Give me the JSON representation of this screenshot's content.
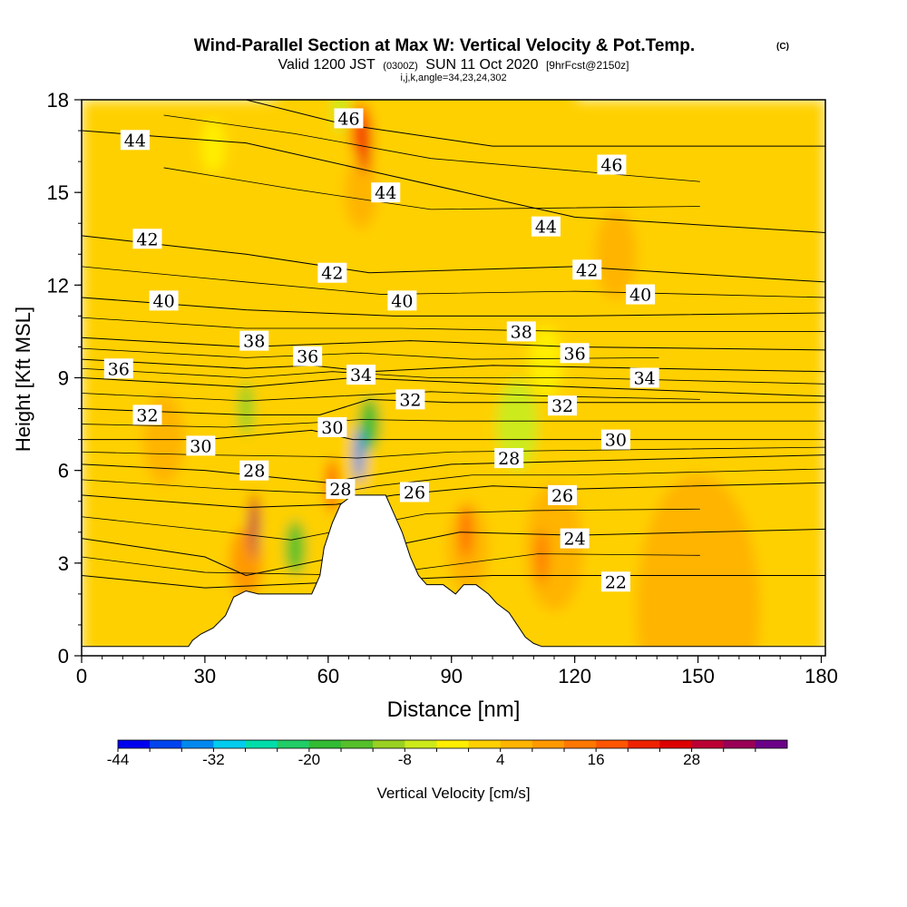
{
  "header": {
    "title": "Wind-Parallel Section at Max W: Vertical Velocity & Pot.Temp.",
    "copyright": "(C)",
    "valid_main": "Valid 1200 JST",
    "valid_utc": "(0300Z)",
    "valid_date": "SUN 11 Oct 2020",
    "forecast": "[9hrFcst@2150z]",
    "indices": "i,j,k,angle=34,23,24,302"
  },
  "chart_data": {
    "type": "heatmap",
    "xlabel": "Distance [nm]",
    "ylabel": "Height [Kft MSL]",
    "xlim": [
      0,
      181
    ],
    "ylim": [
      0,
      18
    ],
    "x_ticks": [
      "0",
      "30",
      "60",
      "90",
      "120",
      "150",
      "180"
    ],
    "y_ticks": [
      "0",
      "3",
      "6",
      "9",
      "12",
      "15",
      "18"
    ],
    "colorbar": {
      "label": "Vertical Velocity [cm/s]",
      "tick_labels": [
        "-44",
        "-32",
        "-20",
        "-8",
        "4",
        "16",
        "28"
      ],
      "min": -44,
      "step": 4,
      "colors": [
        "#0000ee",
        "#0044ee",
        "#0088ee",
        "#00ccee",
        "#00ddaa",
        "#22cc66",
        "#33bb33",
        "#55c02a",
        "#99d022",
        "#ccea1a",
        "#ffee00",
        "#ffd000",
        "#ffb400",
        "#ff9900",
        "#ff7700",
        "#ff5500",
        "#ee2200",
        "#dd0000",
        "#bb0033",
        "#990055",
        "#6a0088"
      ]
    },
    "terrain": [
      [
        0,
        0.3
      ],
      [
        26,
        0.3
      ],
      [
        27,
        0.5
      ],
      [
        29,
        0.7
      ],
      [
        32,
        0.9
      ],
      [
        35,
        1.3
      ],
      [
        37,
        1.9
      ],
      [
        40,
        2.1
      ],
      [
        43,
        2.0
      ],
      [
        48,
        2.0
      ],
      [
        56,
        2.0
      ],
      [
        58,
        2.6
      ],
      [
        59,
        3.5
      ],
      [
        61,
        4.3
      ],
      [
        63,
        4.9
      ],
      [
        66,
        5.2
      ],
      [
        70,
        5.2
      ],
      [
        74,
        5.2
      ],
      [
        76,
        4.6
      ],
      [
        78,
        4.0
      ],
      [
        80,
        3.2
      ],
      [
        82,
        2.6
      ],
      [
        84,
        2.3
      ],
      [
        88,
        2.3
      ],
      [
        91,
        2.0
      ],
      [
        93,
        2.3
      ],
      [
        96,
        2.3
      ],
      [
        99,
        2.0
      ],
      [
        101,
        1.7
      ],
      [
        104,
        1.4
      ],
      [
        106,
        1.0
      ],
      [
        108,
        0.6
      ],
      [
        110,
        0.4
      ],
      [
        112,
        0.3
      ],
      [
        181,
        0.3
      ]
    ],
    "theta_contours": [
      {
        "label": "44",
        "points": [
          [
            0,
            17.0
          ],
          [
            40,
            16.6
          ],
          [
            70,
            15.7
          ],
          [
            120,
            14.2
          ],
          [
            181,
            13.7
          ]
        ]
      },
      {
        "label": "46",
        "points": [
          [
            40,
            18.0
          ],
          [
            64,
            17.2
          ],
          [
            100,
            16.5
          ],
          [
            181,
            16.5
          ]
        ]
      },
      {
        "label": "42",
        "points": [
          [
            0,
            13.6
          ],
          [
            40,
            13.0
          ],
          [
            70,
            12.4
          ],
          [
            120,
            12.6
          ],
          [
            181,
            12.1
          ]
        ]
      },
      {
        "label": "40",
        "points": [
          [
            0,
            11.6
          ],
          [
            40,
            11.2
          ],
          [
            76,
            11.0
          ],
          [
            120,
            11.0
          ],
          [
            181,
            11.1
          ]
        ]
      },
      {
        "label": "38",
        "points": [
          [
            0,
            10.3
          ],
          [
            40,
            10.0
          ],
          [
            80,
            10.2
          ],
          [
            120,
            10.0
          ],
          [
            181,
            9.9
          ]
        ]
      },
      {
        "label": "36",
        "points": [
          [
            0,
            9.6
          ],
          [
            40,
            9.3
          ],
          [
            56,
            9.4
          ],
          [
            70,
            9.2
          ],
          [
            100,
            9.4
          ],
          [
            181,
            9.2
          ]
        ]
      },
      {
        "label": "34",
        "points": [
          [
            0,
            9.0
          ],
          [
            40,
            8.7
          ],
          [
            66,
            9.0
          ],
          [
            100,
            8.8
          ],
          [
            140,
            8.6
          ],
          [
            181,
            8.4
          ]
        ]
      },
      {
        "label": "32",
        "points": [
          [
            0,
            8.0
          ],
          [
            40,
            7.8
          ],
          [
            58,
            7.8
          ],
          [
            70,
            8.3
          ],
          [
            90,
            8.2
          ],
          [
            120,
            8.2
          ],
          [
            181,
            8.2
          ]
        ]
      },
      {
        "label": "30",
        "points": [
          [
            0,
            7.0
          ],
          [
            30,
            7.0
          ],
          [
            56,
            7.3
          ],
          [
            66,
            7.0
          ],
          [
            90,
            7.0
          ],
          [
            120,
            7.0
          ],
          [
            181,
            7.0
          ]
        ]
      },
      {
        "label": "28",
        "points": [
          [
            0,
            6.2
          ],
          [
            30,
            6.0
          ],
          [
            60,
            5.6
          ],
          [
            68,
            5.8
          ],
          [
            90,
            6.2
          ],
          [
            120,
            6.3
          ],
          [
            181,
            6.5
          ]
        ]
      },
      {
        "label": "26",
        "points": [
          [
            0,
            5.2
          ],
          [
            40,
            4.8
          ],
          [
            62,
            4.9
          ],
          [
            76,
            5.2
          ],
          [
            100,
            5.5
          ],
          [
            120,
            5.4
          ],
          [
            181,
            5.6
          ]
        ]
      },
      {
        "label": "24",
        "points": [
          [
            0,
            3.8
          ],
          [
            30,
            3.2
          ],
          [
            40,
            2.6
          ],
          [
            92,
            4.0
          ],
          [
            120,
            3.9
          ],
          [
            181,
            4.1
          ]
        ]
      },
      {
        "label": "22",
        "points": [
          [
            0,
            2.6
          ],
          [
            30,
            2.2
          ],
          [
            100,
            2.6
          ],
          [
            130,
            2.6
          ],
          [
            181,
            2.6
          ]
        ]
      }
    ],
    "contour_labels": [
      {
        "text": "46",
        "x": 65.0,
        "y": 17.4
      },
      {
        "text": "44",
        "x": 13.0,
        "y": 16.7
      },
      {
        "text": "46",
        "x": 129.0,
        "y": 15.9
      },
      {
        "text": "44",
        "x": 74.0,
        "y": 15.0
      },
      {
        "text": "44",
        "x": 113.0,
        "y": 13.9
      },
      {
        "text": "42",
        "x": 16.0,
        "y": 13.5
      },
      {
        "text": "42",
        "x": 61.0,
        "y": 12.4
      },
      {
        "text": "42",
        "x": 123.0,
        "y": 12.5
      },
      {
        "text": "40",
        "x": 20.0,
        "y": 11.5
      },
      {
        "text": "40",
        "x": 78.0,
        "y": 11.5
      },
      {
        "text": "40",
        "x": 136.0,
        "y": 11.7
      },
      {
        "text": "38",
        "x": 42.0,
        "y": 10.2
      },
      {
        "text": "38",
        "x": 107.0,
        "y": 10.5
      },
      {
        "text": "36",
        "x": 9.0,
        "y": 9.3
      },
      {
        "text": "36",
        "x": 55.0,
        "y": 9.7
      },
      {
        "text": "36",
        "x": 120.0,
        "y": 9.8
      },
      {
        "text": "34",
        "x": 68.0,
        "y": 9.1
      },
      {
        "text": "34",
        "x": 137.0,
        "y": 9.0
      },
      {
        "text": "32",
        "x": 80.0,
        "y": 8.3
      },
      {
        "text": "32",
        "x": 117.0,
        "y": 8.1
      },
      {
        "text": "32",
        "x": 16.0,
        "y": 7.8
      },
      {
        "text": "30",
        "x": 61.0,
        "y": 7.4
      },
      {
        "text": "30",
        "x": 130.0,
        "y": 7.0
      },
      {
        "text": "30",
        "x": 29.0,
        "y": 6.8
      },
      {
        "text": "28",
        "x": 104.0,
        "y": 6.4
      },
      {
        "text": "28",
        "x": 42.0,
        "y": 6.0
      },
      {
        "text": "28",
        "x": 63.0,
        "y": 5.4
      },
      {
        "text": "26",
        "x": 81.0,
        "y": 5.3
      },
      {
        "text": "26",
        "x": 117.0,
        "y": 5.2
      },
      {
        "text": "24",
        "x": 120.0,
        "y": 3.8
      },
      {
        "text": "22",
        "x": 130.0,
        "y": 2.4
      }
    ],
    "velocity_cells": [
      {
        "x": 84,
        "y": 9,
        "w": 96,
        "v": 3
      },
      {
        "x": 40,
        "y": 3,
        "w": 8,
        "v": 8
      },
      {
        "x": 94,
        "y": 3.5,
        "w": 10,
        "v": 7
      },
      {
        "x": 115,
        "y": 3.5,
        "w": 14,
        "v": 7
      },
      {
        "x": 20,
        "y": 7,
        "w": 10,
        "v": 5
      },
      {
        "x": 130,
        "y": 13,
        "w": 10,
        "v": 5
      },
      {
        "x": 150,
        "y": 1.5,
        "w": 30,
        "v": 5
      },
      {
        "x": 68,
        "y": 15,
        "w": 8,
        "v": 7
      },
      {
        "x": 68,
        "y": 17,
        "w": 5,
        "v": 18
      },
      {
        "x": 69,
        "y": 16.5,
        "w": 3,
        "v": 22
      },
      {
        "x": 42,
        "y": 4.4,
        "w": 2.5,
        "v": 26
      },
      {
        "x": 42,
        "y": 4.0,
        "w": 1.5,
        "v": 32
      },
      {
        "x": 61,
        "y": 5.5,
        "w": 3,
        "v": 18
      },
      {
        "x": 93.5,
        "y": 4.0,
        "w": 2.5,
        "v": 18
      },
      {
        "x": 112,
        "y": 3.2,
        "w": 3,
        "v": 14
      },
      {
        "x": 63,
        "y": 17.8,
        "w": 4,
        "v": -6
      },
      {
        "x": 32,
        "y": 16.5,
        "w": 6,
        "v": -3
      },
      {
        "x": 52,
        "y": 3.5,
        "w": 5,
        "v": -14
      },
      {
        "x": 40,
        "y": 8.0,
        "w": 4,
        "v": -12
      },
      {
        "x": 70,
        "y": 7.5,
        "w": 5,
        "v": -20
      },
      {
        "x": 67.5,
        "y": 6.5,
        "w": 2.5,
        "v": -36
      },
      {
        "x": 106,
        "y": 7.5,
        "w": 10,
        "v": -6
      },
      {
        "x": 113,
        "y": 9.5,
        "w": 8,
        "v": -2
      }
    ]
  }
}
